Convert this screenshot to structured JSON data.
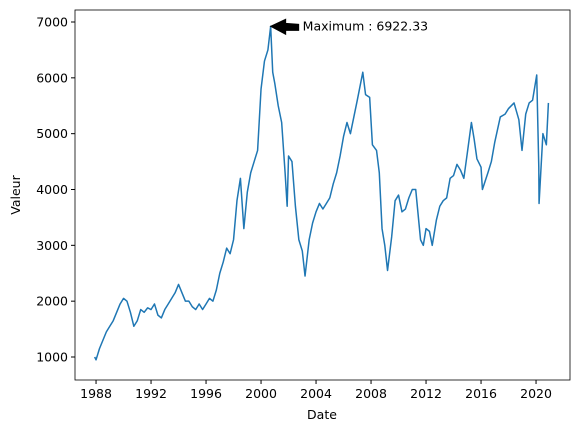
{
  "chart_data": {
    "type": "line",
    "xlabel": "Date",
    "ylabel": "Valeur",
    "x": [
      1987.9,
      1988.0,
      1988.25,
      1988.5,
      1988.75,
      1989.0,
      1989.25,
      1989.5,
      1989.75,
      1990.0,
      1990.25,
      1990.5,
      1990.75,
      1991.0,
      1991.25,
      1991.5,
      1991.75,
      1992.0,
      1992.25,
      1992.5,
      1992.75,
      1993.0,
      1993.25,
      1993.5,
      1993.75,
      1994.0,
      1994.25,
      1994.5,
      1994.75,
      1995.0,
      1995.25,
      1995.5,
      1995.75,
      1996.0,
      1996.25,
      1996.5,
      1996.75,
      1997.0,
      1997.25,
      1997.5,
      1997.75,
      1998.0,
      1998.25,
      1998.5,
      1998.75,
      1999.0,
      1999.25,
      1999.5,
      1999.75,
      2000.0,
      2000.25,
      2000.5,
      2000.7,
      2000.85,
      2001.0,
      2001.25,
      2001.5,
      2001.75,
      2001.9,
      2002.0,
      2002.25,
      2002.5,
      2002.75,
      2003.0,
      2003.2,
      2003.5,
      2003.75,
      2004.0,
      2004.25,
      2004.5,
      2004.75,
      2005.0,
      2005.25,
      2005.5,
      2005.75,
      2006.0,
      2006.25,
      2006.5,
      2006.75,
      2007.0,
      2007.4,
      2007.6,
      2007.9,
      2008.1,
      2008.4,
      2008.6,
      2008.8,
      2009.0,
      2009.2,
      2009.5,
      2009.75,
      2010.0,
      2010.25,
      2010.5,
      2010.75,
      2011.0,
      2011.25,
      2011.6,
      2011.8,
      2012.0,
      2012.25,
      2012.45,
      2012.75,
      2013.0,
      2013.25,
      2013.5,
      2013.75,
      2014.0,
      2014.25,
      2014.5,
      2014.75,
      2015.0,
      2015.3,
      2015.5,
      2015.7,
      2016.0,
      2016.1,
      2016.5,
      2016.75,
      2017.0,
      2017.4,
      2017.75,
      2018.0,
      2018.4,
      2018.75,
      2018.98,
      2019.25,
      2019.5,
      2019.75,
      2020.05,
      2020.2,
      2020.22,
      2020.5,
      2020.75,
      2020.9
    ],
    "series": [
      {
        "color": "#1f77b4",
        "values": [
          1000,
          950,
          1150,
          1300,
          1450,
          1550,
          1650,
          1800,
          1950,
          2050,
          2000,
          1800,
          1550,
          1650,
          1850,
          1800,
          1880,
          1850,
          1950,
          1750,
          1700,
          1850,
          1950,
          2050,
          2150,
          2300,
          2150,
          2000,
          2000,
          1900,
          1850,
          1950,
          1850,
          1950,
          2050,
          2000,
          2200,
          2500,
          2700,
          2950,
          2850,
          3100,
          3800,
          4200,
          3300,
          3950,
          4300,
          4500,
          4700,
          5800,
          6300,
          6500,
          6922.33,
          6100,
          5900,
          5500,
          5200,
          4300,
          3700,
          4600,
          4500,
          3700,
          3100,
          2900,
          2450,
          3100,
          3400,
          3600,
          3750,
          3650,
          3750,
          3850,
          4100,
          4300,
          4600,
          4950,
          5200,
          5000,
          5300,
          5600,
          6100,
          5700,
          5650,
          4800,
          4700,
          4300,
          3300,
          3000,
          2550,
          3150,
          3800,
          3900,
          3600,
          3650,
          3850,
          4000,
          4000,
          3100,
          3000,
          3300,
          3250,
          3000,
          3450,
          3700,
          3800,
          3850,
          4200,
          4250,
          4450,
          4350,
          4200,
          4650,
          5200,
          4900,
          4550,
          4400,
          4000,
          4300,
          4500,
          4850,
          5300,
          5350,
          5450,
          5550,
          5250,
          4700,
          5350,
          5550,
          5600,
          6050,
          4400,
          3750,
          5000,
          4800,
          5550
        ]
      }
    ],
    "xlim": [
      1986.47,
      2022.47
    ],
    "xticks": [
      1988,
      1992,
      1996,
      2000,
      2004,
      2008,
      2012,
      2016,
      2020
    ],
    "ylim": [
      588,
      7215
    ],
    "yticks": [
      1000,
      2000,
      3000,
      4000,
      5000,
      6000,
      7000
    ],
    "annotation": {
      "text": "Maximum : 6922.33",
      "x": 2000.7,
      "y": 6922.33,
      "color": "#000000"
    }
  }
}
